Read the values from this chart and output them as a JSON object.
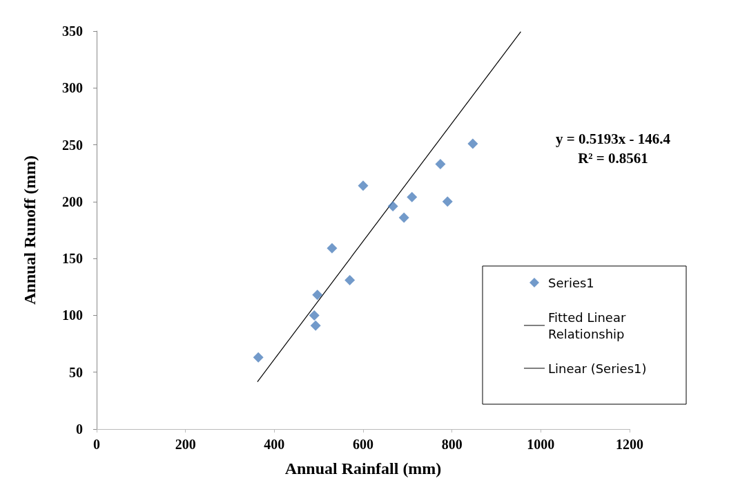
{
  "chart_data": {
    "type": "scatter",
    "xlabel": "Annual Rainfall (mm)",
    "ylabel": "Annual Runoff (mm)",
    "xlim": [
      0,
      1200
    ],
    "xticks": [
      0,
      200,
      400,
      600,
      800,
      1000,
      1200
    ],
    "ylim": [
      0,
      350
    ],
    "yticks": [
      0,
      50,
      100,
      150,
      200,
      250,
      300,
      350
    ],
    "grid": false,
    "legend": "right",
    "marker": "diamond",
    "annotations": [
      "y = 0.5193x - 146.4",
      "R² = 0.8561"
    ],
    "series": [
      {
        "name": "Series1",
        "color": "#4f81bd",
        "x": [
          364,
          490,
          493,
          497,
          530,
          570,
          600,
          667,
          692,
          710,
          774,
          790,
          847
        ],
        "values": [
          63,
          100,
          91,
          118,
          159,
          131,
          214,
          196,
          186,
          204,
          233,
          200,
          251
        ]
      },
      {
        "name": "Fitted Linear Relationship",
        "type": "line",
        "color": "#000000",
        "marker": "none"
      },
      {
        "name": "Linear (Series1)",
        "type": "line",
        "color": "#000000",
        "marker": "none",
        "x": [
          362,
          955
        ],
        "values": [
          41.6,
          349.5
        ]
      }
    ]
  }
}
